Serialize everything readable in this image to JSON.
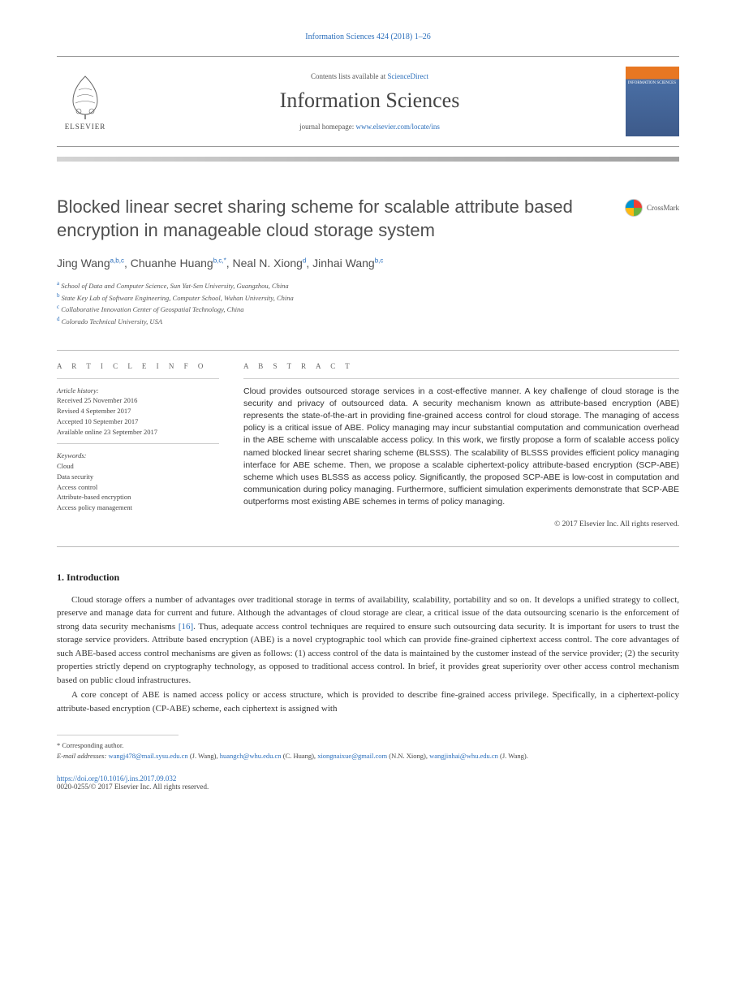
{
  "journal_ref": {
    "text": "Information Sciences 424 (2018) 1–26",
    "color": "#2a6ebb",
    "fontsize": 10
  },
  "header": {
    "contents_prefix": "Contents lists available at ",
    "contents_link": "ScienceDirect",
    "journal_title": "Information Sciences",
    "homepage_prefix": "journal homepage: ",
    "homepage_link": "www.elsevier.com/locate/ins",
    "publisher_name": "ELSEVIER",
    "cover_title": "INFORMATION SCIENCES"
  },
  "article": {
    "title": "Blocked linear secret sharing scheme for scalable attribute based encryption in manageable cloud storage system",
    "crossmark_label": "CrossMark",
    "authors_html": "Jing Wang<sup>a,b,c</sup>, Chuanhe Huang<sup>b,c,*</sup>, Neal N. Xiong<sup>d</sup>, Jinhai Wang<sup>b,c</sup>",
    "affiliations": [
      {
        "sup": "a",
        "text": "School of Data and Computer Science, Sun Yat-Sen University, Guangzhou, China"
      },
      {
        "sup": "b",
        "text": "State Key Lab of Software Engineering, Computer School, Wuhan University, China"
      },
      {
        "sup": "c",
        "text": "Collaborative Innovation Center of Geospatial Technology, China"
      },
      {
        "sup": "d",
        "text": "Colorado Technical University, USA"
      }
    ]
  },
  "article_info": {
    "heading": "A R T I C L E   I N F O",
    "history_label": "Article history:",
    "history": [
      "Received 25 November 2016",
      "Revised 4 September 2017",
      "Accepted 10 September 2017",
      "Available online 23 September 2017"
    ],
    "keywords_label": "Keywords:",
    "keywords": [
      "Cloud",
      "Data security",
      "Access control",
      "Attribute-based encryption",
      "Access policy management"
    ]
  },
  "abstract": {
    "heading": "A B S T R A C T",
    "text": "Cloud provides outsourced storage services in a cost-effective manner. A key challenge of cloud storage is the security and privacy of outsourced data. A security mechanism known as attribute-based encryption (ABE) represents the state-of-the-art in providing fine-grained access control for cloud storage. The managing of access policy is a critical issue of ABE. Policy managing may incur substantial computation and communication overhead in the ABE scheme with unscalable access policy. In this work, we firstly propose a form of scalable access policy named blocked linear secret sharing scheme (BLSSS). The scalability of BLSSS provides efficient policy managing interface for ABE scheme. Then, we propose a scalable ciphertext-policy attribute-based encryption (SCP-ABE) scheme which uses BLSSS as access policy. Significantly, the proposed SCP-ABE is low-cost in computation and communication during policy managing. Furthermore, sufficient simulation experiments demonstrate that SCP-ABE outperforms most existing ABE schemes in terms of policy managing.",
    "copyright": "© 2017 Elsevier Inc. All rights reserved."
  },
  "section1": {
    "heading": "1. Introduction",
    "p1_part1": "Cloud storage offers a number of advantages over traditional storage in terms of availability, scalability, portability and so on. It develops a unified strategy to collect, preserve and manage data for current and future. Although the advantages of cloud storage are clear, a critical issue of the data outsourcing scenario is the enforcement of strong data security mechanisms ",
    "p1_cite": "[16]",
    "p1_part2": ". Thus, adequate access control techniques are required to ensure such outsourcing data security. It is important for users to trust the storage service providers. Attribute based encryption (ABE) is a novel cryptographic tool which can provide fine-grained ciphertext access control. The core advantages of such ABE-based access control mechanisms are given as follows: (1) access control of the data is maintained by the customer instead of the service provider; (2) the security properties strictly depend on cryptography technology, as opposed to traditional access control. In brief, it provides great superiority over other access control mechanism based on public cloud infrastructures.",
    "p2": "A core concept of ABE is named access policy or access structure, which is provided to describe fine-grained access privilege. Specifically, in a ciphertext-policy attribute-based encryption (CP-ABE) scheme, each ciphertext is assigned with"
  },
  "footer": {
    "corresponding": "* Corresponding author.",
    "email_label": "E-mail addresses:",
    "emails": [
      {
        "addr": "wangj478@mail.sysu.edu.cn",
        "who": "(J. Wang)"
      },
      {
        "addr": "huangch@whu.edu.cn",
        "who": "(C. Huang)"
      },
      {
        "addr": "xiongnaixue@gmail.com",
        "who": "(N.N. Xiong)"
      },
      {
        "addr": "wangjinhai@whu.edu.cn",
        "who": "(J. Wang)"
      }
    ],
    "doi": "https://doi.org/10.1016/j.ins.2017.09.032",
    "issn_line": "0020-0255/© 2017 Elsevier Inc. All rights reserved."
  },
  "colors": {
    "link": "#2a6ebb",
    "text": "#333333",
    "heading": "#4f4f4f",
    "border": "#bbbbbb",
    "cover_orange": "#e87722",
    "cover_blue": "#4a6fa5"
  }
}
